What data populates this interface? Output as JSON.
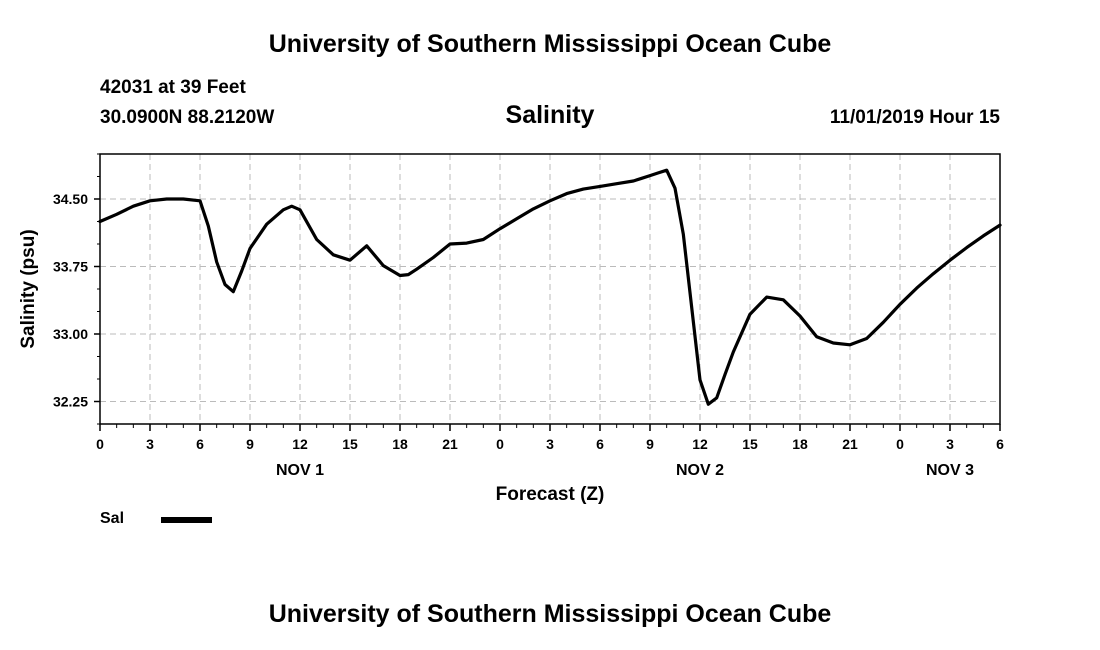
{
  "header": {
    "title": "University of Southern Mississippi Ocean Cube",
    "station": "42031 at 39 Feet",
    "coords": "30.0900N 88.2120W",
    "subtitle": "Salinity",
    "datetime": "11/01/2019 Hour 15"
  },
  "footer": {
    "title": "University of Southern Mississippi Ocean Cube"
  },
  "legend": {
    "label": "Sal"
  },
  "colors": {
    "line": "#000000",
    "grid": "#bbbbbb"
  },
  "chart_data": {
    "type": "line",
    "title": "Salinity",
    "xlabel": "Forecast (Z)",
    "ylabel": "Salinity (psu)",
    "xlim": [
      0,
      54
    ],
    "ylim": [
      32.0,
      35.0
    ],
    "x_ticks": [
      0,
      3,
      6,
      9,
      12,
      15,
      18,
      21,
      24,
      27,
      30,
      33,
      36,
      39,
      42,
      45,
      48,
      51,
      54
    ],
    "x_tick_labels": [
      "0",
      "3",
      "6",
      "9",
      "12",
      "15",
      "18",
      "21",
      "0",
      "3",
      "6",
      "9",
      "12",
      "15",
      "18",
      "21",
      "0",
      "3",
      "6"
    ],
    "day_labels": [
      {
        "x": 12,
        "label": "NOV 1"
      },
      {
        "x": 36,
        "label": "NOV 2"
      },
      {
        "x": 51,
        "label": "NOV 3"
      }
    ],
    "y_ticks": [
      32.25,
      33.0,
      33.75,
      34.5
    ],
    "y_tick_labels": [
      "32.25",
      "33.00",
      "33.75",
      "34.50"
    ],
    "grid": true,
    "series": [
      {
        "name": "Sal",
        "x": [
          0,
          1,
          2,
          3,
          4,
          5,
          6,
          6.5,
          7,
          7.5,
          8,
          8.5,
          9,
          10,
          11,
          11.5,
          12,
          13,
          14,
          15,
          16,
          17,
          18,
          18.5,
          19,
          20,
          21,
          22,
          23,
          24,
          25,
          26,
          27,
          28,
          29,
          30,
          31,
          32,
          32.5,
          33,
          33.5,
          34,
          34.5,
          35,
          36,
          36.5,
          37,
          37.5,
          38,
          39,
          40,
          41,
          42,
          43,
          44,
          45,
          46,
          47,
          48,
          49,
          50,
          51,
          52,
          53,
          54
        ],
        "values": [
          34.25,
          34.33,
          34.42,
          34.48,
          34.5,
          34.5,
          34.48,
          34.2,
          33.8,
          33.55,
          33.47,
          33.7,
          33.95,
          34.22,
          34.38,
          34.42,
          34.38,
          34.05,
          33.88,
          33.82,
          33.98,
          33.76,
          33.65,
          33.66,
          33.72,
          33.85,
          34.0,
          34.01,
          34.05,
          34.17,
          34.28,
          34.39,
          34.48,
          34.56,
          34.61,
          34.64,
          34.67,
          34.7,
          34.73,
          34.76,
          34.79,
          34.82,
          34.62,
          34.11,
          32.49,
          32.22,
          32.29,
          32.55,
          32.8,
          33.22,
          33.41,
          33.38,
          33.2,
          32.97,
          32.9,
          32.88,
          32.95,
          33.13,
          33.33,
          33.51,
          33.67,
          33.82,
          33.96,
          34.09,
          34.21
        ]
      }
    ]
  }
}
